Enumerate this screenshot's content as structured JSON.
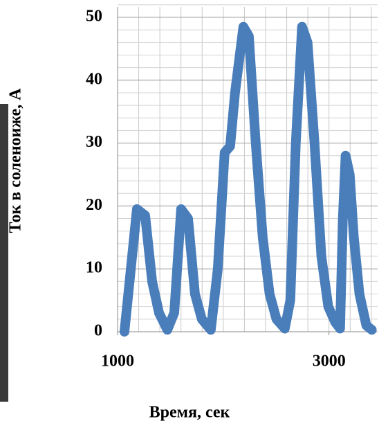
{
  "chart_data": {
    "type": "line",
    "x_label": "Время, сек",
    "y_label": "Ток в соленоиже, А",
    "xlim": [
      1000,
      3460
    ],
    "xticks": [
      1000,
      3000
    ],
    "ylim": [
      0,
      50
    ],
    "yticks": [
      0,
      10,
      20,
      30,
      40,
      50
    ],
    "grid": true,
    "minor_grid": {
      "x": 200,
      "y": 2
    },
    "series": [
      {
        "color": "#4a7ebb",
        "x": [
          1065,
          1183,
          1261,
          1327,
          1392,
          1471,
          1536,
          1601,
          1667,
          1732,
          1797,
          1882,
          1948,
          2013,
          2065,
          2111,
          2190,
          2242,
          2307,
          2373,
          2438,
          2503,
          2582,
          2634,
          2686,
          2745,
          2797,
          2863,
          2928,
          2993,
          3059,
          3105,
          3131,
          3157,
          3196,
          3235,
          3288,
          3353,
          3405
        ],
        "values": [
          0,
          19.5,
          18.5,
          8,
          3,
          0.3,
          3,
          19.5,
          18,
          6,
          2,
          0.3,
          10,
          28.5,
          29.5,
          38,
          48.5,
          47,
          30,
          15,
          6,
          2,
          0.5,
          5,
          30,
          48.5,
          46,
          30,
          12,
          4,
          1.5,
          0.5,
          18,
          28,
          25,
          15,
          6,
          1,
          0.3
        ]
      }
    ]
  }
}
